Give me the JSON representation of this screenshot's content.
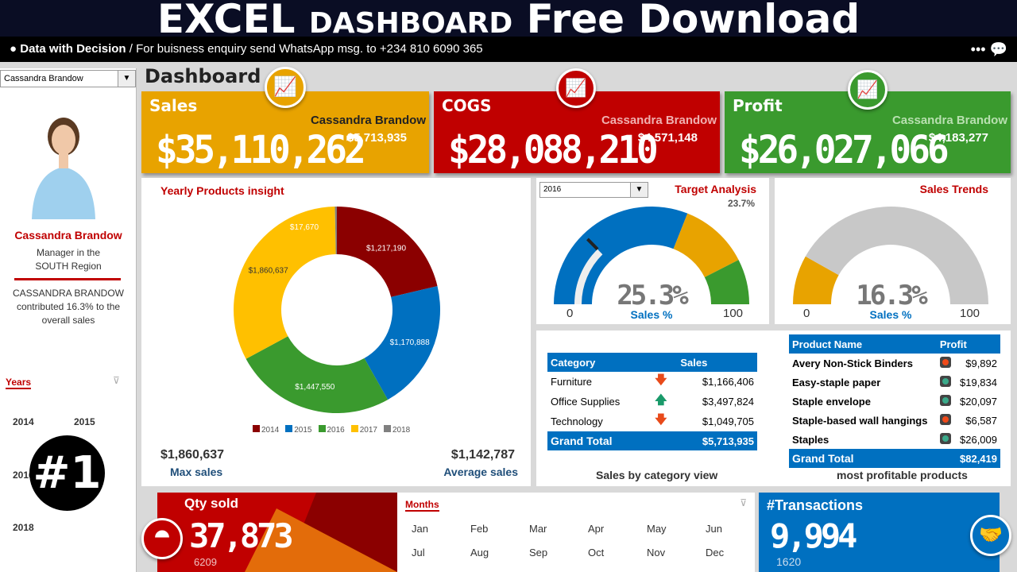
{
  "banner": {
    "part1": "EXCEL",
    "part2": "DASHBOARD",
    "part3": "Free Download"
  },
  "topbar": {
    "brand": "Data with Decision",
    "message": "/ For buisness enquiry send WhatsApp msg. to +234 810 6090 365"
  },
  "sidebar": {
    "selected_person": "Cassandra Brandow",
    "name": "Cassandra Brandow",
    "role_line1": "Manager in the",
    "role_line2": "SOUTH Region",
    "contrib_line1": "CASSANDRA BRANDOW",
    "contrib_line2": "contributed 16.3% to the",
    "contrib_line3": "overall sales",
    "years_label": "Years",
    "years": [
      "2014",
      "2015",
      "2016",
      "2018"
    ],
    "badge": "#1"
  },
  "page_title": "Dashboard",
  "kpis": [
    {
      "title": "Sales",
      "value": "$35,110,262",
      "person": "Cassandra Brandow",
      "person_value": "$5,713,935",
      "color": "#e8a300"
    },
    {
      "title": "COGS",
      "value": "$28,088,210",
      "person": "Cassandra Brandow",
      "person_value": "$4,571,148",
      "color": "#c00000"
    },
    {
      "title": "Profit",
      "value": "$26,027,066",
      "person": "Cassandra Brandow",
      "person_value": "$4,183,277",
      "color": "#3a9a2e"
    }
  ],
  "donut": {
    "title": "Yearly Products insight",
    "max_value": "$1,860,637",
    "max_label": "Max sales",
    "avg_value": "$1,142,787",
    "avg_label": "Average sales"
  },
  "chart_data": {
    "type": "pie",
    "title": "Yearly Products insight",
    "categories": [
      "2014",
      "2015",
      "2016",
      "2017",
      "2018"
    ],
    "values": [
      1217190,
      1170888,
      1447550,
      1860637,
      17670
    ],
    "labels": [
      "$1,217,190",
      "$1,170,888",
      "$1,447,550",
      "$1,860,637",
      "$17,670"
    ],
    "colors": [
      "#8b0000",
      "#0070c0",
      "#3a9a2e",
      "#ffc000",
      "#808080"
    ],
    "legend": "bottom"
  },
  "target": {
    "year": "2016",
    "title": "Target Analysis",
    "target_pct": "23.7%",
    "value": "25.3%",
    "value_num": 25.3,
    "label": "Sales %",
    "min": "0",
    "max": "100",
    "bands": [
      62,
      85,
      100
    ]
  },
  "trends": {
    "title": "Sales Trends",
    "value": "16.3%",
    "value_num": 16.3,
    "label": "Sales %",
    "min": "0",
    "max": "100"
  },
  "category_table": {
    "headers": [
      "Category",
      "Sales"
    ],
    "rows": [
      {
        "name": "Furniture",
        "trend": "down",
        "value": "$1,166,406"
      },
      {
        "name": "Office Supplies",
        "trend": "up",
        "value": "$3,497,824"
      },
      {
        "name": "Technology",
        "trend": "down",
        "value": "$1,049,705"
      }
    ],
    "total_label": "Grand Total",
    "total": "$5,713,935",
    "caption": "Sales by category view"
  },
  "product_table": {
    "headers": [
      "Product Name",
      "Profit"
    ],
    "rows": [
      {
        "name": "Avery Non-Stick Binders",
        "status": "red",
        "value": "$9,892"
      },
      {
        "name": "Easy-staple paper",
        "status": "green",
        "value": "$19,834"
      },
      {
        "name": "Staple envelope",
        "status": "green",
        "value": "$20,097"
      },
      {
        "name": "Staple-based wall hangings",
        "status": "red",
        "value": "$6,587"
      },
      {
        "name": "Staples",
        "status": "green",
        "value": "$26,009"
      }
    ],
    "total_label": "Grand Total",
    "total": "$82,419",
    "caption": "most profitable products"
  },
  "qty": {
    "title": "Qty sold",
    "value": "37,873",
    "sub": "6209"
  },
  "months": {
    "label": "Months",
    "items": [
      "Jan",
      "Feb",
      "Mar",
      "Apr",
      "May",
      "Jun",
      "Jul",
      "Aug",
      "Sep",
      "Oct",
      "Nov",
      "Dec"
    ]
  },
  "transactions": {
    "title": "#Transactions",
    "value": "9,994",
    "sub": "1620"
  }
}
